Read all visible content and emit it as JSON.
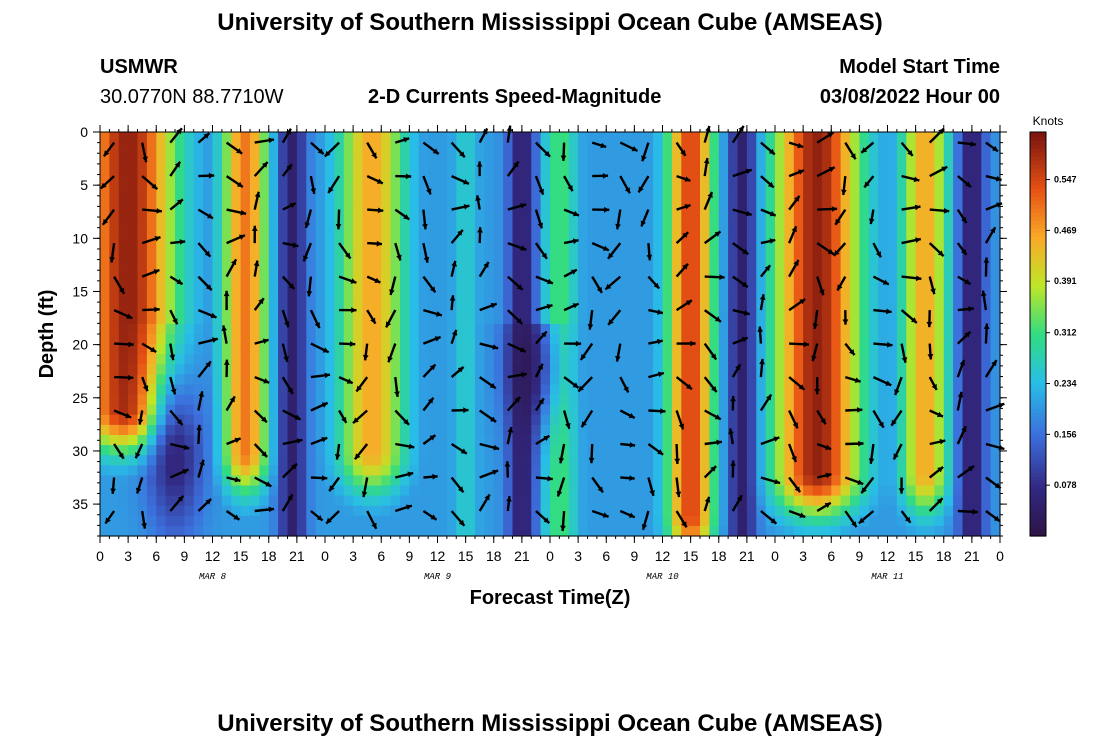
{
  "page": {
    "title_top": "University of Southern Mississippi Ocean Cube (AMSEAS)",
    "title_bottom": "University of Southern Mississippi Ocean Cube (AMSEAS)",
    "station_name": "USMWR",
    "station_coords": "30.0770N  88.7710W",
    "plot_title": "2-D Currents Speed-Magnitude",
    "model_label": "Model Start Time",
    "model_time": "03/08/2022 Hour 00"
  },
  "chart_data": {
    "type": "heatmap",
    "title": "2-D Currents Speed-Magnitude",
    "xlabel": "Forecast Time(Z)",
    "ylabel": "Depth (ft)",
    "x_range_hours": [
      0,
      96
    ],
    "y_range_ft": [
      0,
      38
    ],
    "y_ticks": [
      "0",
      "5",
      "10",
      "15",
      "20",
      "25",
      "30",
      "35"
    ],
    "x_tick_labels": [
      "0",
      "3",
      "6",
      "9",
      "12",
      "15",
      "18",
      "21",
      "0",
      "3",
      "6",
      "9",
      "12",
      "15",
      "18",
      "21",
      "0",
      "3",
      "6",
      "9",
      "12",
      "15",
      "18",
      "21",
      "0",
      "3",
      "6",
      "9",
      "12",
      "15",
      "18",
      "21",
      "0"
    ],
    "day_labels": [
      "MAR 8",
      "MAR 9",
      "MAR 10",
      "MAR 11"
    ],
    "colorbar": {
      "unit": "Knots",
      "ticks": [
        "0.547",
        "0.469",
        "0.391",
        "0.312",
        "0.234",
        "0.156",
        "0.078"
      ],
      "range": [
        0.0,
        0.62
      ]
    },
    "fast_bands": [
      {
        "hour": 3,
        "half_width": 5,
        "speed": 0.6,
        "max_depth": 26
      },
      {
        "hour": 15.5,
        "half_width": 2.5,
        "speed": 0.5,
        "max_depth": 30
      },
      {
        "hour": 29,
        "half_width": 3.5,
        "speed": 0.46,
        "max_depth": 30
      },
      {
        "hour": 39,
        "half_width": 1.5,
        "speed": 0.26,
        "max_depth": 38
      },
      {
        "hour": 49,
        "half_width": 2,
        "speed": 0.32,
        "max_depth": 38
      },
      {
        "hour": 63,
        "half_width": 2.5,
        "speed": 0.55,
        "max_depth": 36
      },
      {
        "hour": 76.5,
        "half_width": 4.5,
        "speed": 0.6,
        "max_depth": 32
      },
      {
        "hour": 88,
        "half_width": 2.5,
        "speed": 0.46,
        "max_depth": 32
      }
    ],
    "slow_bands": [
      {
        "hour": 20.5,
        "half_width": 1.5
      },
      {
        "hour": 45,
        "half_width": 1.5
      },
      {
        "hour": 68.5,
        "half_width": 1.5
      },
      {
        "hour": 93,
        "half_width": 1.5
      }
    ],
    "vector_spacing": {
      "hours": 3,
      "depth_ft": 3.15
    }
  }
}
